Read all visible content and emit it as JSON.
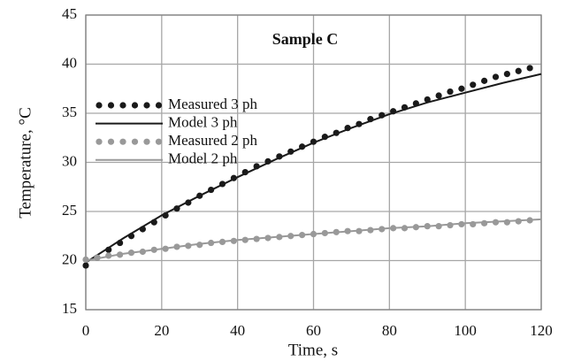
{
  "chart_data": {
    "type": "line",
    "title": "Sample C",
    "xlabel": "Time, s",
    "ylabel": "Temperature, °C",
    "xlim": [
      0,
      120
    ],
    "xticks": [
      0,
      20,
      40,
      60,
      80,
      100,
      120
    ],
    "ylim": [
      15,
      45
    ],
    "yticks": [
      15,
      20,
      25,
      30,
      35,
      40,
      45
    ],
    "grid": true,
    "legend": "upper left",
    "series": [
      {
        "name": "Measured 3 ph",
        "color": "#1a1a1a",
        "mode": "markers",
        "x": [
          0,
          3,
          6,
          9,
          12,
          15,
          18,
          21,
          24,
          27,
          30,
          33,
          36,
          39,
          42,
          45,
          48,
          51,
          54,
          57,
          60,
          63,
          66,
          69,
          72,
          75,
          78,
          81,
          84,
          87,
          90,
          93,
          96,
          99,
          102,
          105,
          108,
          111,
          114,
          117
        ],
        "values": [
          19.5,
          20.3,
          21.1,
          21.8,
          22.5,
          23.2,
          23.9,
          24.6,
          25.3,
          25.9,
          26.6,
          27.2,
          27.8,
          28.4,
          29.0,
          29.6,
          30.1,
          30.6,
          31.1,
          31.6,
          32.1,
          32.6,
          33.0,
          33.5,
          33.9,
          34.4,
          34.8,
          35.2,
          35.6,
          36.0,
          36.4,
          36.8,
          37.2,
          37.5,
          37.9,
          38.3,
          38.7,
          39.0,
          39.3,
          39.6
        ]
      },
      {
        "name": "Model 3 ph",
        "color": "#1a1a1a",
        "mode": "line",
        "x": [
          0,
          10,
          20,
          30,
          40,
          50,
          60,
          70,
          80,
          90,
          100,
          110,
          120
        ],
        "values": [
          19.8,
          22.3,
          24.6,
          26.6,
          28.5,
          30.3,
          32.0,
          33.5,
          34.9,
          36.1,
          37.1,
          38.1,
          39.0
        ]
      },
      {
        "name": "Measured 2 ph",
        "color": "#999999",
        "mode": "markers",
        "x": [
          0,
          3,
          6,
          9,
          12,
          15,
          18,
          21,
          24,
          27,
          30,
          33,
          36,
          39,
          42,
          45,
          48,
          51,
          54,
          57,
          60,
          63,
          66,
          69,
          72,
          75,
          78,
          81,
          84,
          87,
          90,
          93,
          96,
          99,
          102,
          105,
          108,
          111,
          114,
          117
        ],
        "values": [
          20.1,
          20.3,
          20.5,
          20.6,
          20.8,
          20.9,
          21.1,
          21.2,
          21.4,
          21.5,
          21.6,
          21.8,
          21.9,
          22.0,
          22.1,
          22.2,
          22.3,
          22.4,
          22.5,
          22.6,
          22.7,
          22.8,
          22.9,
          23.0,
          23.0,
          23.1,
          23.2,
          23.3,
          23.3,
          23.4,
          23.5,
          23.5,
          23.6,
          23.7,
          23.7,
          23.8,
          23.9,
          23.9,
          24.0,
          24.1
        ]
      },
      {
        "name": "Model 2 ph",
        "color": "#999999",
        "mode": "line",
        "x": [
          0,
          10,
          20,
          30,
          40,
          50,
          60,
          70,
          80,
          90,
          100,
          110,
          120
        ],
        "values": [
          20.0,
          20.7,
          21.2,
          21.7,
          22.1,
          22.4,
          22.7,
          23.0,
          23.3,
          23.5,
          23.8,
          24.0,
          24.2
        ]
      }
    ]
  }
}
